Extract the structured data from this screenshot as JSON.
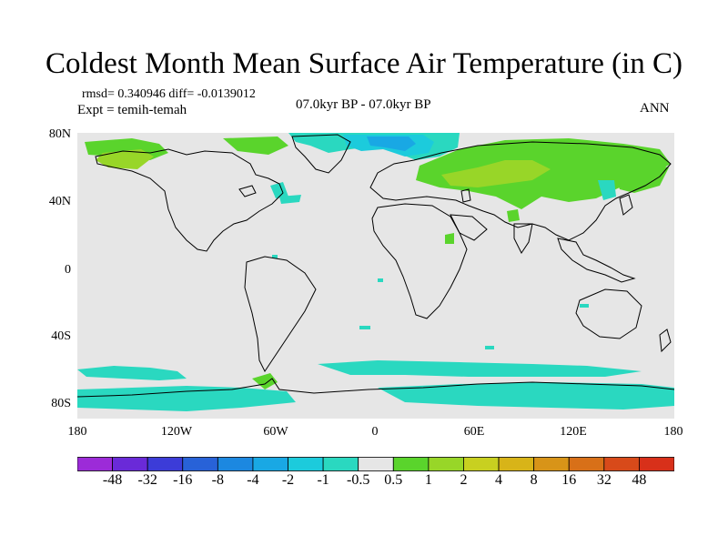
{
  "title": "Coldest Month Mean Surface Air Temperature (in C)",
  "stats": "rmsd= 0.340946 diff= -0.0139012",
  "expt": "Expt = temih-temah",
  "period": "07.0kyr BP - 07.0kyr BP",
  "season": "ANN",
  "lat_labels": [
    "80N",
    "40N",
    "0",
    "40S",
    "80S"
  ],
  "lon_labels": [
    "180",
    "120W",
    "60W",
    "0",
    "60E",
    "120E",
    "180"
  ],
  "colorbar": {
    "labels": [
      "-48",
      "-32",
      "-16",
      "-8",
      "-4",
      "-2",
      "-1",
      "-0.5",
      "0.5",
      "1",
      "2",
      "4",
      "8",
      "16",
      "32",
      "48"
    ],
    "colors": [
      "#9c2bd8",
      "#6a2ad8",
      "#3c3cd8",
      "#2862d8",
      "#1c88e0",
      "#19a8e4",
      "#1ccbdc",
      "#2ad8c0",
      "#e6e6e6",
      "#5ad42c",
      "#98d628",
      "#c8d020",
      "#d8b418",
      "#d89418",
      "#d87018",
      "#d84a1a",
      "#d8301a"
    ]
  },
  "colors": {
    "ocean_land": "#e6e6e6",
    "cyan": "#2ad8c0",
    "lightblue": "#1ccbdc",
    "blue": "#19a8e4",
    "green": "#5ad42c",
    "yellowgreen": "#98d628"
  }
}
